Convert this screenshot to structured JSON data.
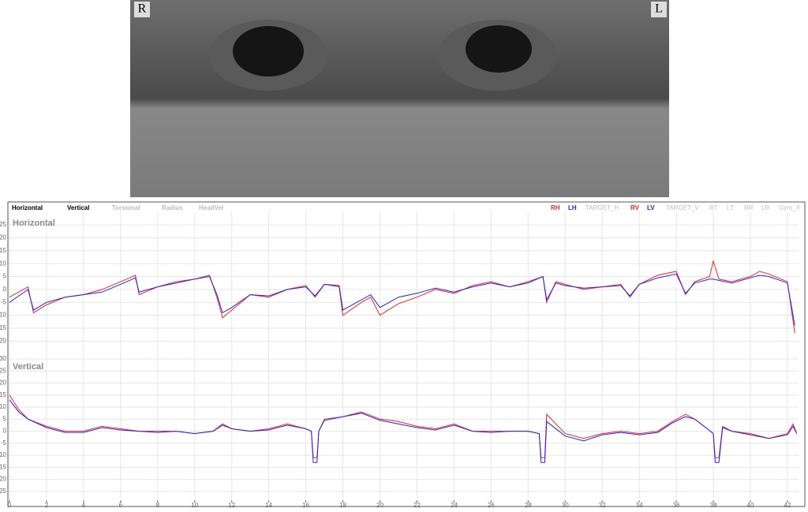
{
  "video": {
    "right_label": "R",
    "left_label": "L"
  },
  "tabs": {
    "active": [
      "Horizontal",
      "Vertical"
    ],
    "inactive": [
      "Torsional",
      "Radius",
      "HeadVel"
    ]
  },
  "legend": {
    "inactive_h": [
      "TARGET_H"
    ],
    "inactive_v": [
      "TARGET_V",
      "RT",
      "LT",
      "RR",
      "LR",
      "Gyro_X"
    ]
  },
  "chart_data": [
    {
      "type": "line",
      "title": "Horizontal",
      "xlim": [
        0,
        42.6
      ],
      "ylim": [
        -26,
        29
      ],
      "yticks": [
        -20,
        -15,
        -10,
        -5,
        0,
        5,
        10,
        15,
        20,
        25
      ],
      "grid": true,
      "x": [
        0,
        1,
        1.3,
        2,
        3,
        4,
        5,
        6,
        6.8,
        7,
        8,
        9,
        10,
        10.8,
        11.2,
        11.5,
        12,
        13,
        14,
        15,
        16,
        16.5,
        17,
        17.8,
        18,
        19,
        19.5,
        20,
        21,
        22,
        23,
        24,
        25,
        26,
        27,
        28,
        28.8,
        29,
        29.5,
        30,
        31,
        32,
        33,
        33.5,
        34,
        35,
        36,
        36.5,
        37,
        37.8,
        38,
        38.3,
        39,
        40,
        40.5,
        41,
        42,
        42.4
      ],
      "series": [
        {
          "name": "RH",
          "color": "#ff2020",
          "values": [
            -3,
            1,
            -9,
            -6,
            -3,
            -2,
            0,
            3,
            5.5,
            -2,
            1,
            3,
            4,
            5.5,
            -3,
            -11,
            -8,
            -2,
            -3,
            0,
            1.5,
            -3,
            2,
            1,
            -10,
            -5,
            -3,
            -10,
            -5.5,
            -3,
            0,
            -1.5,
            1.5,
            3,
            1,
            3,
            5,
            -5,
            3,
            2,
            0,
            1,
            2,
            -3,
            2,
            5.5,
            7,
            -2,
            3,
            5,
            11,
            4,
            3,
            5,
            7,
            6,
            3,
            -17
          ]
        },
        {
          "name": "LH",
          "color": "#2020ff",
          "values": [
            -5,
            0,
            -8,
            -5,
            -3,
            -2,
            -1,
            2,
            4.5,
            -1,
            1,
            2.5,
            4,
            5,
            -2,
            -9,
            -7,
            -2,
            -2.5,
            0,
            1,
            -2.5,
            2,
            1.5,
            -8,
            -4,
            -2,
            -7,
            -3,
            -1.5,
            0.5,
            -1,
            1,
            2.5,
            1,
            2.5,
            5,
            -4,
            2.5,
            1.5,
            0.5,
            1,
            1.5,
            -2.5,
            2,
            4.5,
            6,
            -1.5,
            2.5,
            4,
            4,
            3.5,
            2.5,
            4.5,
            5.5,
            5,
            2.5,
            -14
          ]
        }
      ]
    },
    {
      "type": "line",
      "title": "Vertical",
      "xlim": [
        0,
        42.6
      ],
      "ylim": [
        -28,
        30
      ],
      "yticks": [
        -25,
        -20,
        -15,
        -10,
        -5,
        0,
        5,
        10,
        15,
        20,
        25,
        30
      ],
      "grid": true,
      "xticks": [
        0,
        2,
        4,
        6,
        8,
        10,
        12,
        14,
        16,
        18,
        20,
        22,
        24,
        26,
        28,
        30,
        32,
        34,
        36,
        38,
        40,
        42
      ],
      "x": [
        0,
        0.5,
        1,
        2,
        3,
        4,
        5,
        6,
        7,
        8,
        9,
        10,
        11,
        11.5,
        12,
        13,
        14,
        15,
        16,
        16.3,
        16.4,
        16.6,
        16.7,
        17,
        18,
        19,
        20,
        21,
        22,
        23,
        24,
        25,
        26,
        27,
        28,
        28.6,
        28.7,
        28.9,
        29,
        30,
        31,
        32,
        33,
        34,
        35,
        35.8,
        36.5,
        37,
        37.5,
        38,
        38.1,
        38.3,
        38.5,
        39,
        40,
        41,
        42,
        42.3,
        42.5
      ],
      "series": [
        {
          "name": "RV",
          "color": "#ff2020",
          "values": [
            15,
            9,
            5,
            2,
            0,
            0,
            2,
            1,
            0,
            0,
            0,
            -1,
            0,
            3,
            1,
            0,
            1,
            3,
            1,
            0,
            -11,
            -11,
            0,
            5,
            6,
            8,
            5,
            4,
            2,
            1,
            3,
            0,
            0,
            0,
            0,
            -1,
            -11,
            -11,
            7,
            -1,
            -3,
            -1,
            0,
            -1,
            0,
            4,
            7,
            5,
            2,
            -1,
            -11,
            -11,
            2,
            0,
            -1,
            -3,
            -1,
            3,
            -1
          ]
        },
        {
          "name": "LV",
          "color": "#2020ff",
          "values": [
            13,
            8,
            5,
            1.5,
            -0.5,
            -0.5,
            1.5,
            0.5,
            0,
            -0.5,
            0,
            -1,
            0,
            2.5,
            1,
            0,
            0.5,
            2.5,
            1,
            0,
            -13,
            -13,
            0,
            4.5,
            6,
            7.5,
            4.5,
            3,
            1.5,
            0.5,
            2.5,
            0,
            -0.5,
            0,
            0,
            -1,
            -13,
            -13,
            4,
            -2,
            -4,
            -1.5,
            -0.5,
            -1.5,
            -0.5,
            3.5,
            6,
            5,
            2,
            -1,
            -13,
            -13,
            1.5,
            0,
            -1.5,
            -3,
            -1.5,
            2,
            -1
          ]
        }
      ]
    }
  ]
}
